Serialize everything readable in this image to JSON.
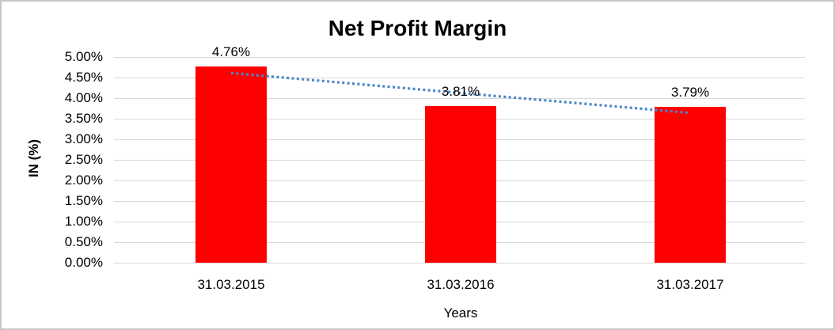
{
  "window": {
    "background_color": "#ffffff",
    "border_color": "#c6c6c6"
  },
  "chart_data": {
    "type": "bar",
    "title": "Net Profit Margin",
    "categories": [
      "31.03.2015",
      "31.03.2016",
      "31.03.2017"
    ],
    "values": [
      4.76,
      3.81,
      3.79
    ],
    "value_labels": [
      "4.76%",
      "3.81%",
      "3.79%"
    ],
    "xlabel": "Years",
    "ylabel": "IN (%)",
    "ylim": [
      0,
      5
    ],
    "ytick_step": 0.5,
    "ytick_labels": [
      "0.00%",
      "0.50%",
      "1.00%",
      "1.50%",
      "2.00%",
      "2.50%",
      "3.00%",
      "3.50%",
      "4.00%",
      "4.50%",
      "5.00%"
    ],
    "grid": true,
    "legend_position": "none",
    "bar_color": "#ff0000",
    "gridline_color": "#d9d9d9",
    "trendline": {
      "type": "linear",
      "style": "dotted",
      "color": "#4a86c8",
      "start_value": 4.61,
      "end_value": 3.64
    }
  }
}
